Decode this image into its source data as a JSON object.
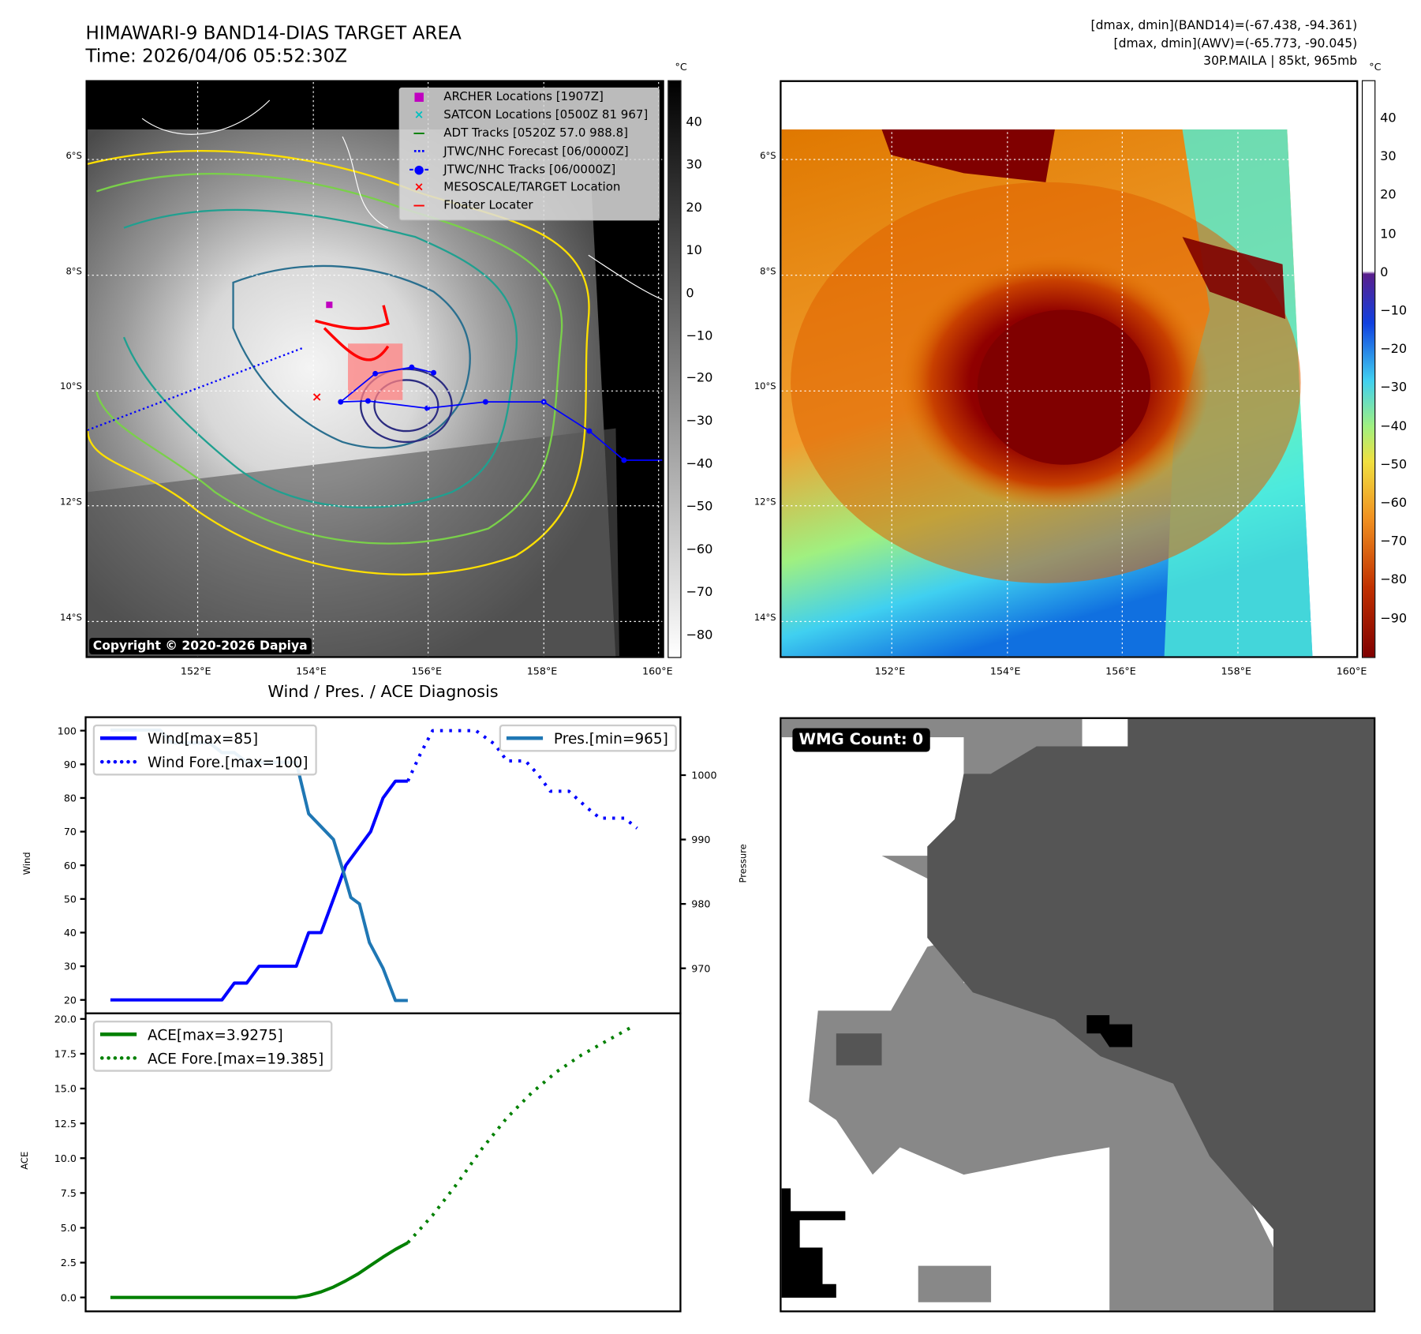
{
  "header": {
    "title_line1": "HIMAWARI-9 BAND14-DIAS TARGET AREA",
    "title_line2": "Time: 2026/04/06 05:52:30Z",
    "info_line1": "[dmax, dmin](BAND14)=(-67.438, -94.361)",
    "info_line2": "[dmax, dmin](AWV)=(-65.773, -90.045)",
    "info_line3": "30P.MAILA | 85kt, 965mb"
  },
  "map": {
    "lat_ticks": [
      "6°S",
      "8°S",
      "10°S",
      "12°S",
      "14°S"
    ],
    "lon_ticks": [
      "152°E",
      "154°E",
      "156°E",
      "158°E",
      "160°E"
    ],
    "copyright": "Copyright © 2020-2026 Dapiya",
    "legend": [
      {
        "symbol": "■",
        "color": "#c000c0",
        "label": "ARCHER Locations [1907Z]"
      },
      {
        "symbol": "×",
        "color": "#00c0c0",
        "label": "SATCON Locations [0500Z 81 967]"
      },
      {
        "symbol": "—",
        "color": "#008000",
        "label": "ADT Tracks [0520Z 57.0 988.8]"
      },
      {
        "symbol": "⋯",
        "color": "#0000ff",
        "label": "JTWC/NHC Forecast [06/0000Z]"
      },
      {
        "symbol": "-●-",
        "color": "#0000ff",
        "label": "JTWC/NHC Tracks [06/0000Z]"
      },
      {
        "symbol": "×",
        "color": "#ff0000",
        "label": "MESOSCALE/TARGET Location"
      },
      {
        "symbol": "—",
        "color": "#ff0000",
        "label": "Floater Locater"
      }
    ],
    "colorbar_unit": "°C",
    "colorbar1_ticks": [
      "40",
      "30",
      "20",
      "10",
      "0",
      "−10",
      "−20",
      "−30",
      "−40",
      "−50",
      "−60",
      "−70",
      "−80"
    ],
    "colorbar2_ticks": [
      "40",
      "30",
      "20",
      "10",
      "0",
      "−10",
      "−20",
      "−30",
      "−40",
      "−50",
      "−60",
      "−70",
      "−80",
      "−90"
    ]
  },
  "diag": {
    "title": "Wind / Pres. / ACE Diagnosis",
    "wind_ylabel": "Wind",
    "pres_ylabel": "Pressure",
    "ace_ylabel": "ACE",
    "wind_legend": [
      "Wind[max=85]",
      "Wind Fore.[max=100]"
    ],
    "pres_legend": [
      "Pres.[min=965]"
    ],
    "ace_legend": [
      "ACE[max=3.9275]",
      "ACE Fore.[max=19.385]"
    ]
  },
  "wmg": {
    "label": "WMG Count: 0"
  },
  "chart_data": [
    {
      "type": "line",
      "title": "Wind / Pres. / ACE Diagnosis",
      "xlabel": "",
      "ylabel": "Wind",
      "y2label": "Pressure",
      "xlim": [
        -2,
        46
      ],
      "ylim": [
        16,
        104
      ],
      "y2lim": [
        963,
        1009
      ],
      "yticks": [
        20,
        30,
        40,
        50,
        60,
        70,
        80,
        90,
        100
      ],
      "y2ticks": [
        970,
        980,
        990,
        1000
      ],
      "series": [
        {
          "name": "Wind[max=85]",
          "axis": "left",
          "color": "#0000ff",
          "style": "solid",
          "points": [
            [
              0,
              20
            ],
            [
              9,
              20
            ],
            [
              10,
              25
            ],
            [
              11,
              25
            ],
            [
              12,
              30
            ],
            [
              15,
              30
            ],
            [
              16,
              40
            ],
            [
              17,
              40
            ],
            [
              19,
              60
            ],
            [
              21,
              70
            ],
            [
              22,
              80
            ],
            [
              23,
              85
            ],
            [
              24,
              85
            ]
          ]
        },
        {
          "name": "Wind Fore.[max=100]",
          "axis": "left",
          "color": "#0000ff",
          "style": "dotted",
          "points": [
            [
              24,
              85
            ],
            [
              25,
              93
            ],
            [
              26,
              100
            ],
            [
              29.5,
              100
            ],
            [
              31,
              96
            ],
            [
              32,
              91
            ],
            [
              33.5,
              91
            ],
            [
              34.5,
              87
            ],
            [
              35.5,
              82
            ],
            [
              37,
              82
            ],
            [
              38.5,
              77
            ],
            [
              39.5,
              74
            ],
            [
              41.5,
              74
            ],
            [
              42.5,
              71
            ]
          ]
        },
        {
          "name": "Pres.[min=965]",
          "axis": "right",
          "color": "#1f77b4",
          "style": "solid",
          "points": [
            [
              0,
              1007
            ],
            [
              4,
              1007
            ],
            [
              5,
              1005
            ],
            [
              8,
              1005
            ],
            [
              9,
              1003.5
            ],
            [
              10,
              1003.5
            ],
            [
              11,
              1002
            ],
            [
              12,
              1002
            ],
            [
              15,
              1002
            ],
            [
              16,
              994
            ],
            [
              18,
              990
            ],
            [
              18.8,
              985
            ],
            [
              19.4,
              981
            ],
            [
              20.1,
              980
            ],
            [
              20.9,
              974
            ],
            [
              22,
              970
            ],
            [
              23,
              965
            ],
            [
              24,
              965
            ]
          ]
        }
      ]
    },
    {
      "type": "line",
      "xlabel": "",
      "ylabel": "ACE",
      "xlim": [
        -2,
        46
      ],
      "ylim": [
        -1,
        20.4
      ],
      "yticks": [
        0.0,
        2.5,
        5.0,
        7.5,
        10.0,
        12.5,
        15.0,
        17.5,
        20.0
      ],
      "series": [
        {
          "name": "ACE[max=3.9275]",
          "color": "#008000",
          "style": "solid",
          "points": [
            [
              0,
              0
            ],
            [
              15,
              0
            ],
            [
              16,
              0.15
            ],
            [
              17,
              0.4
            ],
            [
              18,
              0.75
            ],
            [
              19,
              1.2
            ],
            [
              20,
              1.7
            ],
            [
              21,
              2.3
            ],
            [
              22,
              2.9
            ],
            [
              23,
              3.45
            ],
            [
              24,
              3.93
            ]
          ]
        },
        {
          "name": "ACE Fore.[max=19.385]",
          "color": "#008000",
          "style": "dotted",
          "points": [
            [
              24,
              3.93
            ],
            [
              26,
              5.9
            ],
            [
              28,
              8.2
            ],
            [
              30,
              10.7
            ],
            [
              32,
              12.9
            ],
            [
              34,
              14.7
            ],
            [
              36,
              16.2
            ],
            [
              38,
              17.4
            ],
            [
              40,
              18.4
            ],
            [
              42,
              19.385
            ]
          ]
        }
      ]
    }
  ]
}
